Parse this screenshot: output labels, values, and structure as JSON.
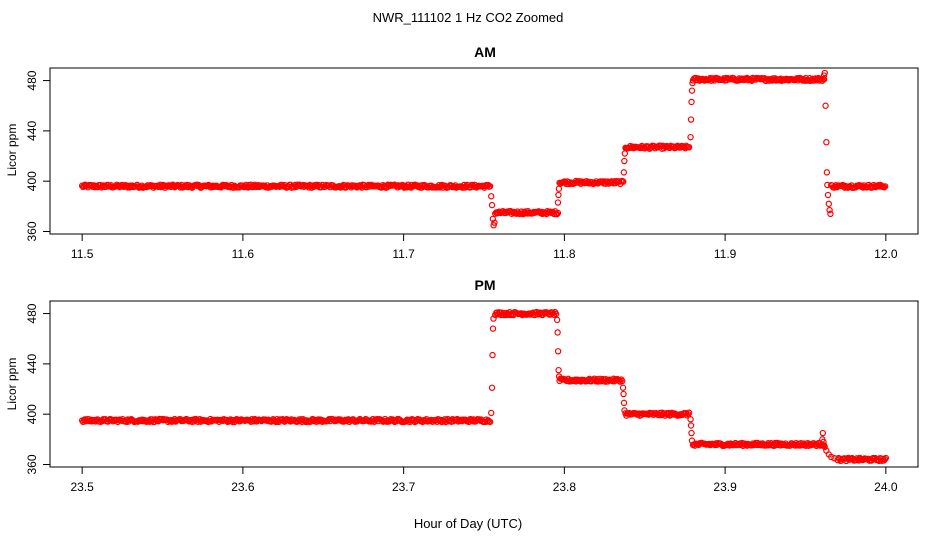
{
  "title": "NWR_111102  1 Hz CO2 Zoomed",
  "xlabel": "Hour of Day (UTC)",
  "colors": {
    "points": "#ff0000",
    "axes": "#000000"
  },
  "chart_data": [
    {
      "type": "scatter",
      "title": "AM",
      "ylabel": "Licor ppm",
      "xlim": [
        11.48,
        12.02
      ],
      "ylim": [
        358,
        490
      ],
      "xticks": [
        11.5,
        11.6,
        11.7,
        11.8,
        11.9,
        12.0
      ],
      "xtick_labels": [
        "11.5",
        "11.6",
        "11.7",
        "11.8",
        "11.9",
        "12.0"
      ],
      "yticks": [
        360,
        400,
        440,
        480
      ],
      "ytick_labels": [
        "360",
        "400",
        "440",
        "480"
      ],
      "segments": [
        {
          "x_start": 11.5,
          "x_end": 11.754,
          "value": 396
        },
        {
          "x_start": 11.757,
          "x_end": 11.796,
          "value": 375
        },
        {
          "x_start": 11.797,
          "x_end": 11.837,
          "value": 399
        },
        {
          "x_start": 11.838,
          "x_end": 11.878,
          "value": 427
        },
        {
          "x_start": 11.88,
          "x_end": 11.962,
          "value": 481
        },
        {
          "x_start": 11.966,
          "x_end": 12.0,
          "value": 396
        }
      ],
      "transition_points": [
        {
          "x": 11.7545,
          "y": 388
        },
        {
          "x": 11.755,
          "y": 381
        },
        {
          "x": 11.7555,
          "y": 370
        },
        {
          "x": 11.756,
          "y": 365
        },
        {
          "x": 11.7565,
          "y": 367
        },
        {
          "x": 11.796,
          "y": 383
        },
        {
          "x": 11.7963,
          "y": 389
        },
        {
          "x": 11.7966,
          "y": 394
        },
        {
          "x": 11.837,
          "y": 407
        },
        {
          "x": 11.8373,
          "y": 416
        },
        {
          "x": 11.8376,
          "y": 422
        },
        {
          "x": 11.8785,
          "y": 435
        },
        {
          "x": 11.8788,
          "y": 449
        },
        {
          "x": 11.8791,
          "y": 463
        },
        {
          "x": 11.8794,
          "y": 472
        },
        {
          "x": 11.8797,
          "y": 478
        },
        {
          "x": 11.9615,
          "y": 484
        },
        {
          "x": 11.962,
          "y": 486
        },
        {
          "x": 11.9625,
          "y": 460
        },
        {
          "x": 11.963,
          "y": 431
        },
        {
          "x": 11.9633,
          "y": 407
        },
        {
          "x": 11.9636,
          "y": 397
        },
        {
          "x": 11.964,
          "y": 389
        },
        {
          "x": 11.9645,
          "y": 382
        },
        {
          "x": 11.965,
          "y": 377
        },
        {
          "x": 11.9655,
          "y": 374
        }
      ]
    },
    {
      "type": "scatter",
      "title": "PM",
      "ylabel": "Licor ppm",
      "xlim": [
        23.48,
        24.02
      ],
      "ylim": [
        358,
        490
      ],
      "xticks": [
        23.5,
        23.6,
        23.7,
        23.8,
        23.9,
        24.0
      ],
      "xtick_labels": [
        "23.5",
        "23.6",
        "23.7",
        "23.8",
        "23.9",
        "24.0"
      ],
      "yticks": [
        360,
        400,
        440,
        480
      ],
      "ytick_labels": [
        "360",
        "400",
        "440",
        "480"
      ],
      "segments": [
        {
          "x_start": 23.5,
          "x_end": 23.754,
          "value": 395
        },
        {
          "x_start": 23.757,
          "x_end": 23.795,
          "value": 480
        },
        {
          "x_start": 23.797,
          "x_end": 23.836,
          "value": 427
        },
        {
          "x_start": 23.838,
          "x_end": 23.878,
          "value": 400
        },
        {
          "x_start": 23.88,
          "x_end": 23.962,
          "value": 376
        },
        {
          "x_start": 23.97,
          "x_end": 24.0,
          "value": 364
        }
      ],
      "transition_points": [
        {
          "x": 23.7545,
          "y": 401
        },
        {
          "x": 23.755,
          "y": 421
        },
        {
          "x": 23.7553,
          "y": 447
        },
        {
          "x": 23.7556,
          "y": 468
        },
        {
          "x": 23.7559,
          "y": 476
        },
        {
          "x": 23.7955,
          "y": 475
        },
        {
          "x": 23.7958,
          "y": 465
        },
        {
          "x": 23.7961,
          "y": 450
        },
        {
          "x": 23.7964,
          "y": 435
        },
        {
          "x": 23.7967,
          "y": 430
        },
        {
          "x": 23.8365,
          "y": 421
        },
        {
          "x": 23.8368,
          "y": 416
        },
        {
          "x": 23.8371,
          "y": 409
        },
        {
          "x": 23.8374,
          "y": 403
        },
        {
          "x": 23.8785,
          "y": 396
        },
        {
          "x": 23.8788,
          "y": 391
        },
        {
          "x": 23.8791,
          "y": 385
        },
        {
          "x": 23.8794,
          "y": 379
        },
        {
          "x": 23.9605,
          "y": 380
        },
        {
          "x": 23.9608,
          "y": 385
        },
        {
          "x": 23.9612,
          "y": 378
        },
        {
          "x": 23.962,
          "y": 374
        },
        {
          "x": 23.963,
          "y": 371
        },
        {
          "x": 23.9645,
          "y": 368
        },
        {
          "x": 23.966,
          "y": 366
        },
        {
          "x": 23.968,
          "y": 365
        }
      ]
    }
  ]
}
